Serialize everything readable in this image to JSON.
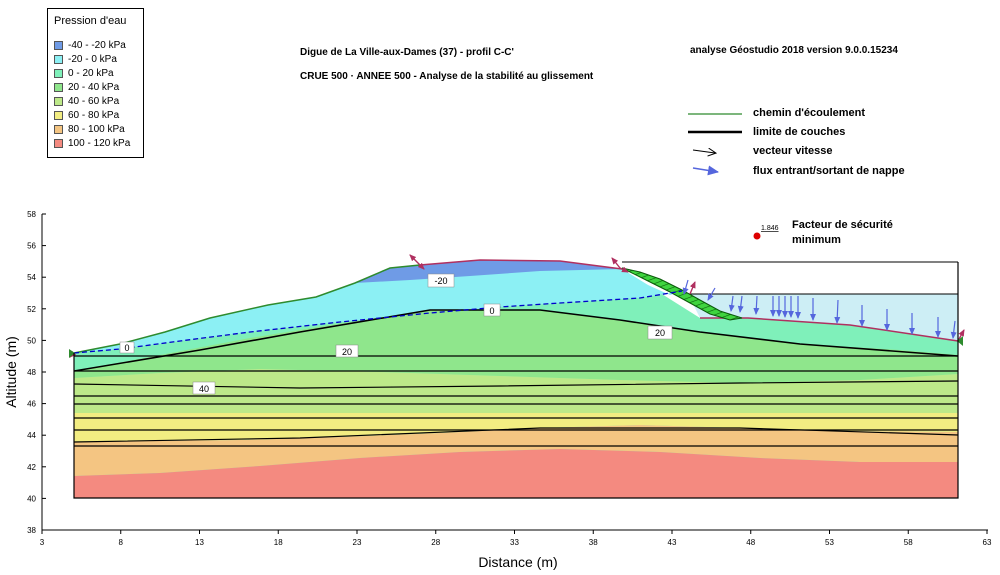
{
  "legend": {
    "title": "Pression d'eau",
    "items": [
      {
        "label": "-40 - -20 kPa",
        "color": "#6f9be6"
      },
      {
        "label": "-20 - 0 kPa",
        "color": "#8cf0f4"
      },
      {
        "label": "0 - 20 kPa",
        "color": "#7ff0ba"
      },
      {
        "label": "20 - 40 kPa",
        "color": "#8fe68c"
      },
      {
        "label": "40 - 60 kPa",
        "color": "#bde989"
      },
      {
        "label": "60 - 80 kPa",
        "color": "#f2ed82"
      },
      {
        "label": "80 - 100 kPa",
        "color": "#f4c582"
      },
      {
        "label": "100 - 120 kPa",
        "color": "#f48a80"
      }
    ]
  },
  "title": {
    "line1": "Digue de La Ville-aux-Dames (37) - profil C-C'",
    "line2": "CRUE 500 ·  ANNEE 500 - Analyse de la stabilité au glissement",
    "software": "analyse Géostudio 2018 version 9.0.0.15234"
  },
  "keys": {
    "flow_path": "chemin d'écoulement",
    "layer_boundary": "limite de couches",
    "velocity_vector": "vecteur vitesse",
    "water_flux": "flux entrant/sortant de nappe"
  },
  "safety": {
    "value": "1.846",
    "label_line1": "Facteur de sécurité",
    "label_line2": "minimum"
  },
  "axes": {
    "xlabel": "Distance (m)",
    "ylabel": "Altitude (m)",
    "x_ticks": [
      "3",
      "8",
      "13",
      "18",
      "23",
      "28",
      "33",
      "38",
      "43",
      "48",
      "53",
      "58",
      "63"
    ],
    "y_ticks": [
      "38",
      "40",
      "42",
      "44",
      "46",
      "48",
      "50",
      "52",
      "54",
      "56",
      "58"
    ]
  },
  "contours": [
    "-20",
    "0",
    "20",
    "20",
    "0",
    "40"
  ],
  "colors": {
    "ground_line": "#2e8b2e",
    "slip_zone": "#22bb22",
    "phreatic": "#0000cc",
    "flux_arrow": "#5566dd",
    "exit_arrow": "#b03060",
    "water": "#cdeef5",
    "safety_point": "#dd0000"
  }
}
